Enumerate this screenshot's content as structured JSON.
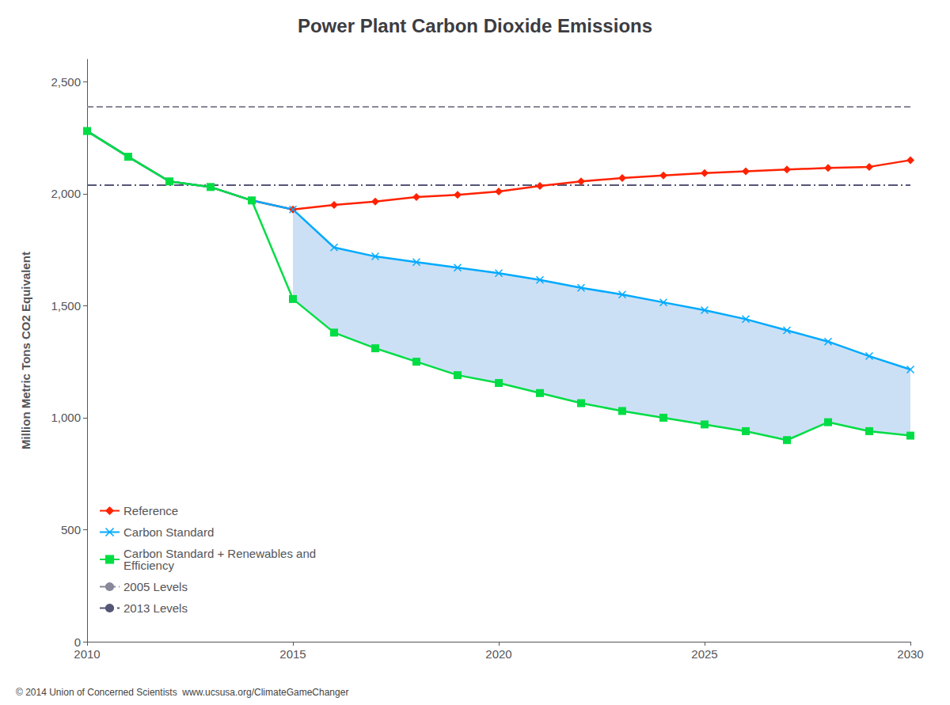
{
  "chart_data": {
    "type": "line",
    "title": "Power Plant Carbon Dioxide Emissions",
    "y_label": "Million Metric Tons CO2 Equivalent",
    "annotations": [
      "© 2014 Union of Concerned Scientists  www.ucsusa.org/ClimateGameChanger"
    ],
    "x": [
      2010,
      2011,
      2012,
      2013,
      2014,
      2015,
      2016,
      2017,
      2018,
      2019,
      2020,
      2021,
      2022,
      2023,
      2024,
      2025,
      2026,
      2027,
      2028,
      2029,
      2030
    ],
    "series": [
      {
        "name": "Reference",
        "color": "#ff2200",
        "marker": "diamond",
        "values": [
          2280,
          2165,
          2055,
          2030,
          1970,
          1930,
          1950,
          1965,
          1985,
          1995,
          2010,
          2035,
          2055,
          2070,
          2082,
          2092,
          2100,
          2108,
          2115,
          2120,
          2150
        ]
      },
      {
        "name": "Carbon Standard",
        "color": "#00aaff",
        "marker": "x",
        "values": [
          2280,
          2165,
          2055,
          2030,
          1970,
          1930,
          1760,
          1720,
          1695,
          1670,
          1645,
          1615,
          1580,
          1550,
          1515,
          1480,
          1440,
          1390,
          1340,
          1275,
          1215
        ]
      },
      {
        "name": "Carbon Standard + Renewables and\nEfficiency",
        "color": "#00dd44",
        "marker": "square",
        "values": [
          2280,
          2165,
          2055,
          2030,
          1970,
          1530,
          1380,
          1310,
          1250,
          1190,
          1155,
          1110,
          1065,
          1030,
          1000,
          970,
          940,
          900,
          980,
          940,
          920
        ]
      }
    ],
    "hlines": [
      {
        "name": "2005 Levels",
        "value": 2390,
        "color": "#888899",
        "line_style": "dashed"
      },
      {
        "name": "2013 Levels",
        "value": 2040,
        "color": "#555577",
        "line_style": "dashdot"
      }
    ],
    "fill": {
      "between": [
        "Carbon Standard",
        "Carbon Standard + Renewables and\nEfficiency"
      ],
      "x_from": 2015,
      "color": "#5599dd"
    },
    "xlim": [
      2010,
      2030
    ],
    "xticks": [
      2010,
      2015,
      2020,
      2025,
      2030
    ],
    "ylim": [
      0,
      2600
    ],
    "yticks": [
      0,
      500,
      {
        "value": 1000,
        "label": "1,000"
      },
      {
        "value": 1500,
        "label": "1,500"
      },
      {
        "value": 2000,
        "label": "2,000"
      },
      {
        "value": 2500,
        "label": "2,500"
      }
    ],
    "grid": false,
    "legend": "lower left"
  }
}
